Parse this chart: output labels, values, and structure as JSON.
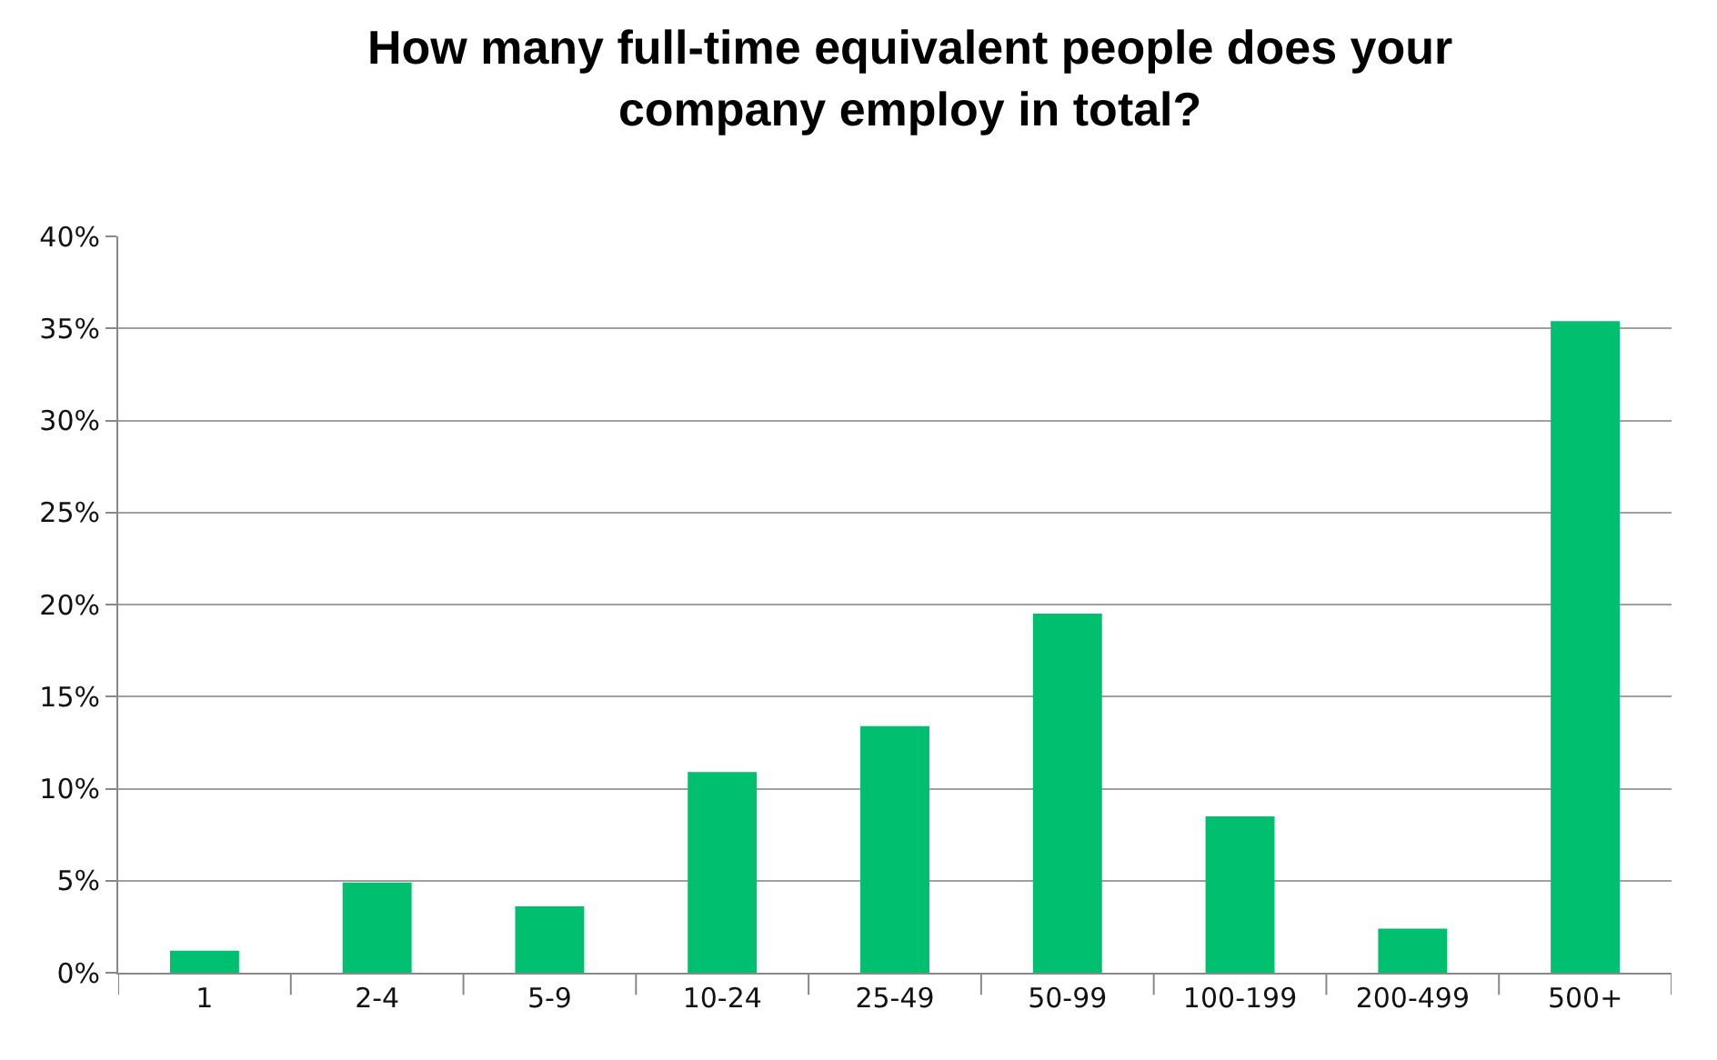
{
  "chart_data": {
    "type": "bar",
    "title": "How many full-time equivalent people does your company employ in total?",
    "categories": [
      "1",
      "2-4",
      "5-9",
      "10-24",
      "25-49",
      "50-99",
      "100-199",
      "200-499",
      "500+"
    ],
    "values": [
      1.2,
      4.9,
      3.6,
      10.9,
      13.4,
      19.5,
      8.5,
      2.4,
      35.4
    ],
    "color": "#00bf6f",
    "ylim": [
      0,
      40
    ],
    "yticks": [
      {
        "value": 0,
        "label": "0%"
      },
      {
        "value": 5,
        "label": "5%"
      },
      {
        "value": 10,
        "label": "10%"
      },
      {
        "value": 15,
        "label": "15%"
      },
      {
        "value": 20,
        "label": "20%"
      },
      {
        "value": 25,
        "label": "25%"
      },
      {
        "value": 30,
        "label": "30%"
      },
      {
        "value": 35,
        "label": "35%"
      },
      {
        "value": 40,
        "label": "40%"
      }
    ],
    "grid": "y"
  }
}
